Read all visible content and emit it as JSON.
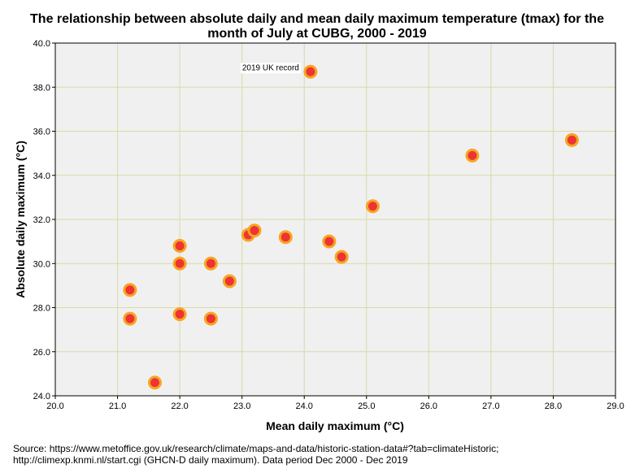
{
  "chart_data": {
    "type": "scatter",
    "title_line1": "The relationship between absolute daily and mean daily maximum temperature (tmax) for the",
    "title_line2": "month of July at CUBG, 2000 - 2019",
    "xlabel": "Mean daily maximum (°C)",
    "ylabel": "Absolute daily maximum (°C)",
    "xlim": [
      20.0,
      29.0
    ],
    "ylim": [
      24.0,
      40.0
    ],
    "xticks": [
      "20.0",
      "21.0",
      "22.0",
      "23.0",
      "24.0",
      "25.0",
      "26.0",
      "27.0",
      "28.0",
      "29.0"
    ],
    "yticks": [
      "24.0",
      "26.0",
      "28.0",
      "30.0",
      "32.0",
      "34.0",
      "36.0",
      "38.0",
      "40.0"
    ],
    "grid": true,
    "marker_fill": "#ee3333",
    "marker_edge": "#f5a623",
    "plot_background": "#f0f0f0",
    "grid_color": "#d9d9a8",
    "points": [
      {
        "x": 21.2,
        "y": 28.8
      },
      {
        "x": 21.2,
        "y": 27.5
      },
      {
        "x": 21.6,
        "y": 24.6
      },
      {
        "x": 22.0,
        "y": 30.8
      },
      {
        "x": 22.0,
        "y": 30.0
      },
      {
        "x": 22.0,
        "y": 27.7
      },
      {
        "x": 22.5,
        "y": 30.0
      },
      {
        "x": 22.5,
        "y": 27.5
      },
      {
        "x": 22.8,
        "y": 29.2
      },
      {
        "x": 23.1,
        "y": 31.3
      },
      {
        "x": 23.2,
        "y": 31.5
      },
      {
        "x": 23.7,
        "y": 31.2
      },
      {
        "x": 24.1,
        "y": 38.7
      },
      {
        "x": 24.4,
        "y": 31.0
      },
      {
        "x": 24.6,
        "y": 30.3
      },
      {
        "x": 25.1,
        "y": 32.6
      },
      {
        "x": 26.7,
        "y": 34.9
      },
      {
        "x": 28.3,
        "y": 35.6
      }
    ],
    "annotations": [
      {
        "text": "2019 UK record",
        "x": 24.1,
        "y": 38.7
      }
    ]
  },
  "source_text": "Source: https://www.metoffice.gov.uk/research/climate/maps-and-data/historic-station-data#?tab=climateHistoric; http://climexp.knmi.nl/start.cgi (GHCN-D daily maximum). Data period Dec 2000 - Dec 2019"
}
